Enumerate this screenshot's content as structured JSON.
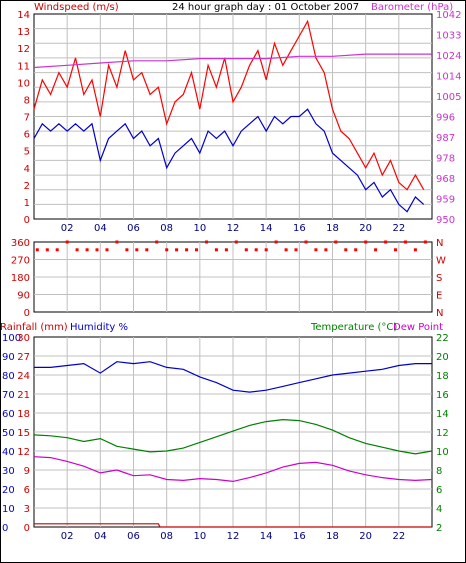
{
  "title": "24 hour graph day : 01 October 2007",
  "colors": {
    "windspeed": "#ff0000",
    "windspeed_avg": "#0000cc",
    "barometer": "#cc33cc",
    "wind_dir": "#ff0000",
    "humidity": "#0000cc",
    "temperature": "#008000",
    "dew_point": "#cc00cc",
    "rainfall": "#cc0000",
    "grid": "#c0c0c0"
  },
  "chart_data": [
    {
      "type": "line",
      "xlabel": "",
      "xticks": [
        "02",
        "04",
        "06",
        "08",
        "10",
        "12",
        "14",
        "16",
        "18",
        "20",
        "22"
      ],
      "xlim": [
        0,
        24
      ],
      "left_axis": {
        "label": "Windspeed (m/s)",
        "ylim": [
          0,
          14
        ],
        "ticks": [
          "0",
          "1",
          "2",
          "4",
          "5",
          "6",
          "7",
          "8",
          "10",
          "11",
          "12",
          "13",
          "14"
        ]
      },
      "right_axis": {
        "label": "Barometer (hPa)",
        "ylim": [
          950,
          1042
        ],
        "ticks": [
          "950",
          "959",
          "968",
          "978",
          "987",
          "996",
          "1005",
          "1014",
          "1024",
          "1033",
          "1042"
        ]
      },
      "series": [
        {
          "name": "Windspeed (m/s)",
          "axis": "left",
          "style": "gust",
          "x": [
            0.0,
            0.5,
            1.0,
            1.5,
            2.0,
            2.5,
            3.0,
            3.5,
            4.0,
            4.5,
            5.0,
            5.5,
            6.0,
            6.5,
            7.0,
            7.5,
            8.0,
            8.5,
            9.0,
            9.5,
            10.0,
            10.5,
            11.0,
            11.5,
            12.0,
            12.5,
            13.0,
            13.5,
            14.0,
            14.5,
            15.0,
            15.5,
            16.0,
            16.5,
            17.0,
            17.5,
            18.0,
            18.5,
            19.0,
            19.5,
            20.0,
            20.5,
            21.0,
            21.5,
            22.0,
            22.5,
            23.0,
            23.5
          ],
          "values": [
            7.5,
            9.5,
            8.5,
            10.0,
            9.0,
            11.0,
            8.5,
            9.5,
            7.0,
            10.5,
            9.0,
            11.5,
            9.5,
            10.0,
            8.5,
            9.0,
            6.5,
            8.0,
            8.5,
            10.0,
            7.5,
            10.5,
            9.0,
            11.0,
            8.0,
            9.0,
            10.5,
            11.5,
            9.5,
            12.0,
            10.5,
            11.5,
            12.5,
            13.5,
            11.0,
            10.0,
            7.5,
            6.0,
            5.5,
            4.5,
            3.5,
            4.5,
            3.0,
            4.0,
            2.5,
            2.0,
            3.0,
            2.0
          ]
        },
        {
          "name": "Windspeed average",
          "axis": "left",
          "style": "average",
          "x": [
            0.0,
            0.5,
            1.0,
            1.5,
            2.0,
            2.5,
            3.0,
            3.5,
            4.0,
            4.5,
            5.0,
            5.5,
            6.0,
            6.5,
            7.0,
            7.5,
            8.0,
            8.5,
            9.0,
            9.5,
            10.0,
            10.5,
            11.0,
            11.5,
            12.0,
            12.5,
            13.0,
            13.5,
            14.0,
            14.5,
            15.0,
            15.5,
            16.0,
            16.5,
            17.0,
            17.5,
            18.0,
            18.5,
            19.0,
            19.5,
            20.0,
            20.5,
            21.0,
            21.5,
            22.0,
            22.5,
            23.0,
            23.5
          ],
          "values": [
            5.5,
            6.5,
            6.0,
            6.5,
            6.0,
            6.5,
            6.0,
            6.5,
            4.0,
            5.5,
            6.0,
            6.5,
            5.5,
            6.0,
            5.0,
            5.5,
            3.5,
            4.5,
            5.0,
            5.5,
            4.5,
            6.0,
            5.5,
            6.0,
            5.0,
            6.0,
            6.5,
            7.0,
            6.0,
            7.0,
            6.5,
            7.0,
            7.0,
            7.5,
            6.5,
            6.0,
            4.5,
            4.0,
            3.5,
            3.0,
            2.0,
            2.5,
            1.5,
            2.0,
            1.0,
            0.5,
            1.5,
            1.0
          ]
        },
        {
          "name": "Barometer (hPa)",
          "axis": "right",
          "x": [
            0,
            2,
            4,
            6,
            8,
            10,
            12,
            14,
            16,
            18,
            20,
            22,
            24
          ],
          "values": [
            1018,
            1019,
            1020,
            1021,
            1021,
            1022,
            1022,
            1022,
            1023,
            1023,
            1024,
            1024,
            1024
          ]
        }
      ]
    },
    {
      "type": "scatter",
      "xticks": [
        "02",
        "04",
        "06",
        "08",
        "10",
        "12",
        "14",
        "16",
        "18",
        "20",
        "22"
      ],
      "xlim": [
        0,
        24
      ],
      "left_axis": {
        "label": "",
        "ylim": [
          0,
          360
        ],
        "ticks": [
          "0",
          "90",
          "180",
          "270",
          "360"
        ]
      },
      "right_axis": {
        "label": "",
        "ticks": [
          "N",
          "E",
          "S",
          "W",
          "N"
        ]
      },
      "series": [
        {
          "name": "Wind direction",
          "x": [
            0.2,
            0.8,
            1.4,
            2.0,
            2.6,
            3.2,
            3.8,
            4.4,
            5.0,
            5.6,
            6.2,
            6.8,
            7.4,
            8.0,
            8.6,
            9.2,
            9.8,
            10.4,
            11.0,
            11.6,
            12.2,
            12.8,
            13.4,
            14.0,
            14.6,
            15.2,
            15.8,
            16.4,
            17.0,
            17.6,
            18.2,
            18.8,
            19.4,
            20.0,
            20.6,
            21.2,
            21.8,
            22.4,
            23.0,
            23.6
          ],
          "values": [
            320,
            320,
            320,
            360,
            320,
            320,
            320,
            320,
            360,
            320,
            320,
            320,
            360,
            320,
            320,
            320,
            320,
            360,
            320,
            320,
            360,
            320,
            320,
            320,
            360,
            320,
            320,
            360,
            320,
            320,
            360,
            320,
            320,
            360,
            320,
            360,
            320,
            360,
            320,
            360
          ]
        }
      ]
    },
    {
      "type": "line",
      "xticks": [
        "02",
        "04",
        "06",
        "08",
        "10",
        "12",
        "14",
        "16",
        "18",
        "20",
        "22"
      ],
      "xlim": [
        0,
        24
      ],
      "left_axis": {
        "labels": [
          "Rainfall (mm)",
          "Humidity %"
        ],
        "rain_ticks": [
          "0",
          "3",
          "6",
          "9",
          "12",
          "15",
          "18",
          "21",
          "24",
          "27",
          "30"
        ],
        "humidity_ticks": [
          "0",
          "10",
          "20",
          "30",
          "40",
          "50",
          "60",
          "70",
          "80",
          "90",
          "100"
        ]
      },
      "right_axis": {
        "labels": [
          "Temperature (°C)",
          "Dew Point"
        ],
        "ticks": [
          "2",
          "4",
          "6",
          "8",
          "10",
          "12",
          "14",
          "16",
          "18",
          "20",
          "22"
        ],
        "ylim": [
          2,
          22
        ]
      },
      "series": [
        {
          "name": "Humidity %",
          "axis": "left",
          "x": [
            0,
            1,
            2,
            3,
            4,
            5,
            6,
            7,
            8,
            9,
            10,
            11,
            12,
            13,
            14,
            15,
            16,
            17,
            18,
            19,
            20,
            21,
            22,
            23,
            24
          ],
          "values": [
            84,
            84,
            85,
            86,
            81,
            87,
            86,
            87,
            84,
            83,
            79,
            76,
            72,
            71,
            72,
            74,
            76,
            78,
            80,
            81,
            82,
            83,
            85,
            86,
            86
          ]
        },
        {
          "name": "Temperature (°C)",
          "axis": "right",
          "x": [
            0,
            1,
            2,
            3,
            4,
            5,
            6,
            7,
            8,
            9,
            10,
            11,
            12,
            13,
            14,
            15,
            16,
            17,
            18,
            19,
            20,
            21,
            22,
            23,
            24
          ],
          "values": [
            11.7,
            11.6,
            11.4,
            11.0,
            11.3,
            10.5,
            10.2,
            9.9,
            10.0,
            10.3,
            10.9,
            11.5,
            12.1,
            12.7,
            13.1,
            13.3,
            13.2,
            12.8,
            12.2,
            11.4,
            10.8,
            10.4,
            10.0,
            9.7,
            10.0
          ]
        },
        {
          "name": "Dew Point",
          "axis": "right",
          "x": [
            0,
            1,
            2,
            3,
            4,
            5,
            6,
            7,
            8,
            9,
            10,
            11,
            12,
            13,
            14,
            15,
            16,
            17,
            18,
            19,
            20,
            21,
            22,
            23,
            24
          ],
          "values": [
            9.4,
            9.3,
            8.9,
            8.4,
            7.7,
            8.0,
            7.4,
            7.5,
            7.0,
            6.9,
            7.1,
            7.0,
            6.8,
            7.2,
            7.7,
            8.3,
            8.7,
            8.8,
            8.5,
            7.9,
            7.5,
            7.2,
            7.0,
            6.9,
            7.0
          ]
        },
        {
          "name": "Rainfall (mm)",
          "axis": "left",
          "x": [
            0,
            7.5,
            7.6,
            24
          ],
          "values": [
            0.5,
            0.5,
            0,
            0
          ]
        }
      ]
    }
  ]
}
